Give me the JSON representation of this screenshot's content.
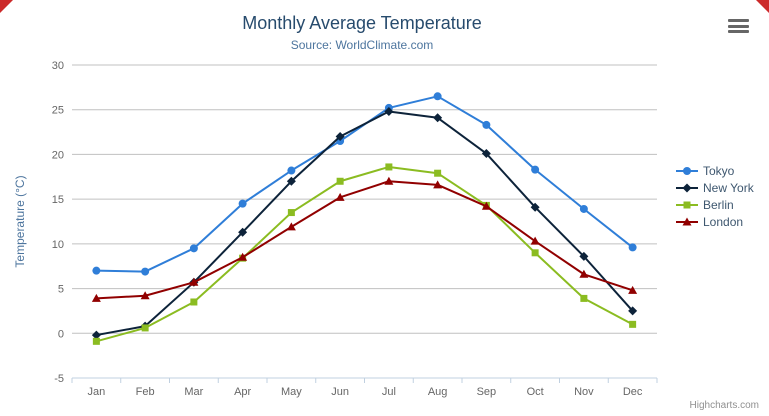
{
  "chart_data": {
    "type": "line",
    "title": "Monthly Average Temperature",
    "subtitle": "Source: WorldClimate.com",
    "ylabel": "Temperature (°C)",
    "ylim": [
      -5,
      30
    ],
    "ytick_interval": 5,
    "grid": true,
    "legend_position": "right",
    "categories": [
      "Jan",
      "Feb",
      "Mar",
      "Apr",
      "May",
      "Jun",
      "Jul",
      "Aug",
      "Sep",
      "Oct",
      "Nov",
      "Dec"
    ],
    "series": [
      {
        "name": "Tokyo",
        "color": "#2f7ed8",
        "marker": "circle",
        "values": [
          7.0,
          6.9,
          9.5,
          14.5,
          18.2,
          21.5,
          25.2,
          26.5,
          23.3,
          18.3,
          13.9,
          9.6
        ]
      },
      {
        "name": "New York",
        "color": "#0d233a",
        "marker": "diamond",
        "values": [
          -0.2,
          0.8,
          5.7,
          11.3,
          17.0,
          22.0,
          24.8,
          24.1,
          20.1,
          14.1,
          8.6,
          2.5
        ]
      },
      {
        "name": "Berlin",
        "color": "#8bbc21",
        "marker": "square",
        "values": [
          -0.9,
          0.6,
          3.5,
          8.4,
          13.5,
          17.0,
          18.6,
          17.9,
          14.3,
          9.0,
          3.9,
          1.0
        ]
      },
      {
        "name": "London",
        "color": "#910000",
        "marker": "triangle",
        "values": [
          3.9,
          4.2,
          5.7,
          8.5,
          11.9,
          15.2,
          17.0,
          16.6,
          14.2,
          10.3,
          6.6,
          4.8
        ]
      }
    ],
    "credits": "Highcharts.com"
  },
  "icons": {
    "export_menu": "hamburger-icon",
    "corner_markers": "red-triangle"
  },
  "colors": {
    "title": "#274b6d",
    "subtitle": "#4d759e",
    "axis_label": "#666666",
    "gridline": "#c0c0c0",
    "axis_line": "#c0d0e0",
    "legend_text": "#3e576f",
    "credits": "#909090",
    "corner_marker": "#cc2a2a"
  }
}
